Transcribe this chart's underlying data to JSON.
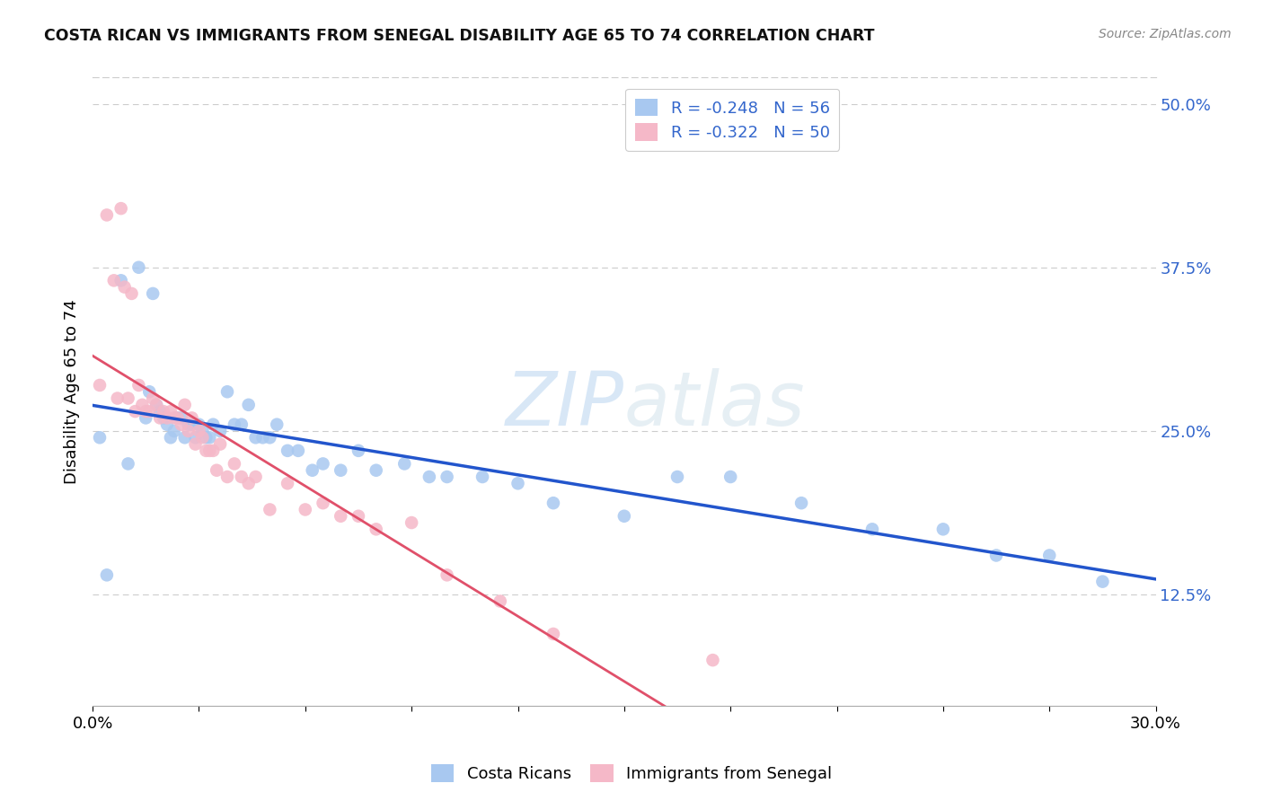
{
  "title": "COSTA RICAN VS IMMIGRANTS FROM SENEGAL DISABILITY AGE 65 TO 74 CORRELATION CHART",
  "source": "Source: ZipAtlas.com",
  "ylabel": "Disability Age 65 to 74",
  "ytick_vals": [
    0.125,
    0.25,
    0.375,
    0.5
  ],
  "ytick_labels": [
    "12.5%",
    "25.0%",
    "37.5%",
    "50.0%"
  ],
  "xmin": 0.0,
  "xmax": 0.3,
  "ymin": 0.04,
  "ymax": 0.52,
  "legend_label1": "R = -0.248   N = 56",
  "legend_label2": "R = -0.322   N = 50",
  "color_blue": "#a8c8f0",
  "color_pink": "#f5b8c8",
  "trendline_blue": "#2255cc",
  "trendline_pink_solid": "#e0506a",
  "trendline_pink_dashed": "#f5c0cc",
  "watermark_zip": "ZIP",
  "watermark_atlas": "atlas",
  "costa_ricans_x": [
    0.002,
    0.004,
    0.008,
    0.01,
    0.013,
    0.015,
    0.016,
    0.017,
    0.018,
    0.019,
    0.02,
    0.021,
    0.022,
    0.023,
    0.024,
    0.025,
    0.026,
    0.027,
    0.028,
    0.029,
    0.03,
    0.031,
    0.032,
    0.033,
    0.034,
    0.036,
    0.038,
    0.04,
    0.042,
    0.044,
    0.046,
    0.048,
    0.05,
    0.052,
    0.055,
    0.058,
    0.062,
    0.065,
    0.07,
    0.075,
    0.08,
    0.088,
    0.095,
    0.1,
    0.11,
    0.12,
    0.13,
    0.15,
    0.165,
    0.18,
    0.2,
    0.22,
    0.24,
    0.255,
    0.27,
    0.285
  ],
  "costa_ricans_y": [
    0.245,
    0.14,
    0.365,
    0.225,
    0.375,
    0.26,
    0.28,
    0.355,
    0.27,
    0.265,
    0.26,
    0.255,
    0.245,
    0.25,
    0.26,
    0.26,
    0.245,
    0.255,
    0.255,
    0.245,
    0.255,
    0.25,
    0.245,
    0.245,
    0.255,
    0.25,
    0.28,
    0.255,
    0.255,
    0.27,
    0.245,
    0.245,
    0.245,
    0.255,
    0.235,
    0.235,
    0.22,
    0.225,
    0.22,
    0.235,
    0.22,
    0.225,
    0.215,
    0.215,
    0.215,
    0.21,
    0.195,
    0.185,
    0.215,
    0.215,
    0.195,
    0.175,
    0.175,
    0.155,
    0.155,
    0.135
  ],
  "senegal_x": [
    0.002,
    0.004,
    0.006,
    0.007,
    0.008,
    0.009,
    0.01,
    0.011,
    0.012,
    0.013,
    0.014,
    0.015,
    0.016,
    0.017,
    0.018,
    0.019,
    0.02,
    0.021,
    0.022,
    0.023,
    0.024,
    0.025,
    0.026,
    0.027,
    0.028,
    0.029,
    0.03,
    0.031,
    0.032,
    0.033,
    0.034,
    0.035,
    0.036,
    0.038,
    0.04,
    0.042,
    0.044,
    0.046,
    0.05,
    0.055,
    0.06,
    0.065,
    0.07,
    0.075,
    0.08,
    0.09,
    0.1,
    0.115,
    0.13,
    0.175
  ],
  "senegal_y": [
    0.285,
    0.415,
    0.365,
    0.275,
    0.42,
    0.36,
    0.275,
    0.355,
    0.265,
    0.285,
    0.27,
    0.265,
    0.265,
    0.275,
    0.27,
    0.26,
    0.265,
    0.26,
    0.265,
    0.26,
    0.26,
    0.255,
    0.27,
    0.25,
    0.26,
    0.24,
    0.25,
    0.245,
    0.235,
    0.235,
    0.235,
    0.22,
    0.24,
    0.215,
    0.225,
    0.215,
    0.21,
    0.215,
    0.19,
    0.21,
    0.19,
    0.195,
    0.185,
    0.185,
    0.175,
    0.18,
    0.14,
    0.12,
    0.095,
    0.075
  ]
}
